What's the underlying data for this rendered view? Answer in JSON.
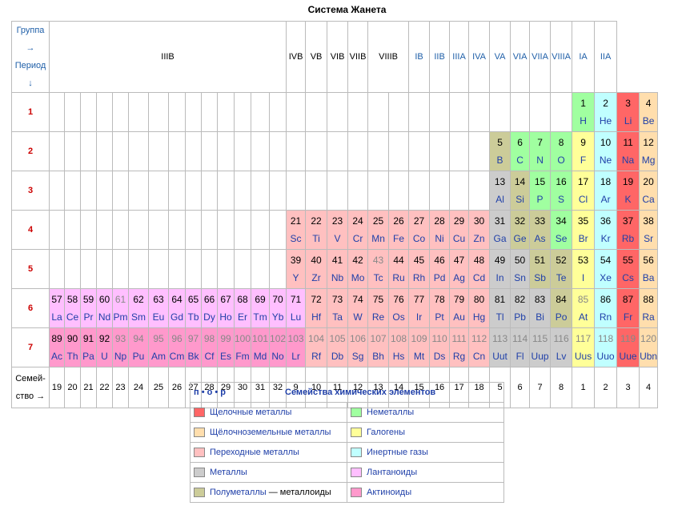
{
  "title": "Система Жанета",
  "corner": {
    "group": "Группа →",
    "period": "Период ↓"
  },
  "group_headers": [
    "IIIB",
    "IVB",
    "VB",
    "VIB",
    "VIIB",
    "VIIIB",
    "IB",
    "IIB",
    "IIIA",
    "IVA",
    "VA",
    "VIA",
    "VIIA",
    "VIIIA",
    "IA",
    "IIA"
  ],
  "periods": [
    "1",
    "2",
    "3",
    "4",
    "5",
    "6",
    "7"
  ],
  "family_label": [
    "Семей-",
    "ство →"
  ],
  "family_numbers": [
    "19",
    "20",
    "21",
    "22",
    "23",
    "24",
    "25",
    "26",
    "27",
    "28",
    "29",
    "30",
    "31",
    "32",
    "9",
    "10",
    "11",
    "12",
    "13",
    "14",
    "15",
    "16",
    "17",
    "18",
    "5",
    "6",
    "7",
    "8",
    "1",
    "2",
    "3",
    "4"
  ],
  "colors": {
    "alkali": "#ff6666",
    "earth": "#ffdead",
    "trans": "#ffc0c0",
    "metal": "#cccccc",
    "semi": "#cccc99",
    "nonmetal": "#a0ffa0",
    "halogen": "#ffff99",
    "noble": "#c0ffff",
    "lanth": "#ffbfff",
    "act": "#ff99cc"
  },
  "elements": [
    [
      [
        28,
        "1",
        "H",
        "nonmetal",
        0
      ],
      [
        29,
        "2",
        "He",
        "noble",
        0
      ],
      [
        30,
        "3",
        "Li",
        "alkali",
        0
      ],
      [
        31,
        "4",
        "Be",
        "earth",
        0
      ]
    ],
    [
      [
        24,
        "5",
        "B",
        "semi",
        0
      ],
      [
        25,
        "6",
        "C",
        "nonmetal",
        0
      ],
      [
        26,
        "7",
        "N",
        "nonmetal",
        0
      ],
      [
        27,
        "8",
        "O",
        "nonmetal",
        0
      ],
      [
        28,
        "9",
        "F",
        "halogen",
        0
      ],
      [
        29,
        "10",
        "Ne",
        "noble",
        0
      ],
      [
        30,
        "11",
        "Na",
        "alkali",
        0
      ],
      [
        31,
        "12",
        "Mg",
        "earth",
        0
      ]
    ],
    [
      [
        24,
        "13",
        "Al",
        "metal",
        0
      ],
      [
        25,
        "14",
        "Si",
        "semi",
        0
      ],
      [
        26,
        "15",
        "P",
        "nonmetal",
        0
      ],
      [
        27,
        "16",
        "S",
        "nonmetal",
        0
      ],
      [
        28,
        "17",
        "Cl",
        "halogen",
        0
      ],
      [
        29,
        "18",
        "Ar",
        "noble",
        0
      ],
      [
        30,
        "19",
        "K",
        "alkali",
        0
      ],
      [
        31,
        "20",
        "Ca",
        "earth",
        0
      ]
    ],
    [
      [
        14,
        "21",
        "Sc",
        "trans",
        0
      ],
      [
        15,
        "22",
        "Ti",
        "trans",
        0
      ],
      [
        16,
        "23",
        "V",
        "trans",
        0
      ],
      [
        17,
        "24",
        "Cr",
        "trans",
        0
      ],
      [
        18,
        "25",
        "Mn",
        "trans",
        0
      ],
      [
        19,
        "26",
        "Fe",
        "trans",
        0
      ],
      [
        20,
        "27",
        "Co",
        "trans",
        0
      ],
      [
        21,
        "28",
        "Ni",
        "trans",
        0
      ],
      [
        22,
        "29",
        "Cu",
        "trans",
        0
      ],
      [
        23,
        "30",
        "Zn",
        "trans",
        0
      ],
      [
        24,
        "31",
        "Ga",
        "metal",
        0
      ],
      [
        25,
        "32",
        "Ge",
        "semi",
        0
      ],
      [
        26,
        "33",
        "As",
        "semi",
        0
      ],
      [
        27,
        "34",
        "Se",
        "nonmetal",
        0
      ],
      [
        28,
        "35",
        "Br",
        "halogen",
        0
      ],
      [
        29,
        "36",
        "Kr",
        "noble",
        0
      ],
      [
        30,
        "37",
        "Rb",
        "alkali",
        0
      ],
      [
        31,
        "38",
        "Sr",
        "earth",
        0
      ]
    ],
    [
      [
        14,
        "39",
        "Y",
        "trans",
        0
      ],
      [
        15,
        "40",
        "Zr",
        "trans",
        0
      ],
      [
        16,
        "41",
        "Nb",
        "trans",
        0
      ],
      [
        17,
        "42",
        "Mo",
        "trans",
        0
      ],
      [
        18,
        "43",
        "Tc",
        "trans",
        1
      ],
      [
        19,
        "44",
        "Ru",
        "trans",
        0
      ],
      [
        20,
        "45",
        "Rh",
        "trans",
        0
      ],
      [
        21,
        "46",
        "Pd",
        "trans",
        0
      ],
      [
        22,
        "47",
        "Ag",
        "trans",
        0
      ],
      [
        23,
        "48",
        "Cd",
        "trans",
        0
      ],
      [
        24,
        "49",
        "In",
        "metal",
        0
      ],
      [
        25,
        "50",
        "Sn",
        "metal",
        0
      ],
      [
        26,
        "51",
        "Sb",
        "semi",
        0
      ],
      [
        27,
        "52",
        "Te",
        "semi",
        0
      ],
      [
        28,
        "53",
        "I",
        "halogen",
        0
      ],
      [
        29,
        "54",
        "Xe",
        "noble",
        0
      ],
      [
        30,
        "55",
        "Cs",
        "alkali",
        0
      ],
      [
        31,
        "56",
        "Ba",
        "earth",
        0
      ]
    ],
    [
      [
        0,
        "57",
        "La",
        "lanth",
        0
      ],
      [
        1,
        "58",
        "Ce",
        "lanth",
        0
      ],
      [
        2,
        "59",
        "Pr",
        "lanth",
        0
      ],
      [
        3,
        "60",
        "Nd",
        "lanth",
        0
      ],
      [
        4,
        "61",
        "Pm",
        "lanth",
        1
      ],
      [
        5,
        "62",
        "Sm",
        "lanth",
        0
      ],
      [
        6,
        "63",
        "Eu",
        "lanth",
        0
      ],
      [
        7,
        "64",
        "Gd",
        "lanth",
        0
      ],
      [
        8,
        "65",
        "Tb",
        "lanth",
        0
      ],
      [
        9,
        "66",
        "Dy",
        "lanth",
        0
      ],
      [
        10,
        "67",
        "Ho",
        "lanth",
        0
      ],
      [
        11,
        "68",
        "Er",
        "lanth",
        0
      ],
      [
        12,
        "69",
        "Tm",
        "lanth",
        0
      ],
      [
        13,
        "70",
        "Yb",
        "lanth",
        0
      ],
      [
        14,
        "71",
        "Lu",
        "lanth",
        0
      ],
      [
        15,
        "72",
        "Hf",
        "trans",
        0
      ],
      [
        16,
        "73",
        "Ta",
        "trans",
        0
      ],
      [
        17,
        "74",
        "W",
        "trans",
        0
      ],
      [
        18,
        "75",
        "Re",
        "trans",
        0
      ],
      [
        19,
        "76",
        "Os",
        "trans",
        0
      ],
      [
        20,
        "77",
        "Ir",
        "trans",
        0
      ],
      [
        21,
        "78",
        "Pt",
        "trans",
        0
      ],
      [
        22,
        "79",
        "Au",
        "trans",
        0
      ],
      [
        23,
        "80",
        "Hg",
        "trans",
        0
      ],
      [
        24,
        "81",
        "Tl",
        "metal",
        0
      ],
      [
        25,
        "82",
        "Pb",
        "metal",
        0
      ],
      [
        26,
        "83",
        "Bi",
        "metal",
        0
      ],
      [
        27,
        "84",
        "Po",
        "semi",
        0
      ],
      [
        28,
        "85",
        "At",
        "halogen",
        1
      ],
      [
        29,
        "86",
        "Rn",
        "noble",
        0
      ],
      [
        30,
        "87",
        "Fr",
        "alkali",
        0
      ],
      [
        31,
        "88",
        "Ra",
        "earth",
        0
      ]
    ],
    [
      [
        0,
        "89",
        "Ac",
        "act",
        0
      ],
      [
        1,
        "90",
        "Th",
        "act",
        0
      ],
      [
        2,
        "91",
        "Pa",
        "act",
        0
      ],
      [
        3,
        "92",
        "U",
        "act",
        0
      ],
      [
        4,
        "93",
        "Np",
        "act",
        1
      ],
      [
        5,
        "94",
        "Pu",
        "act",
        1
      ],
      [
        6,
        "95",
        "Am",
        "act",
        1
      ],
      [
        7,
        "96",
        "Cm",
        "act",
        1
      ],
      [
        8,
        "97",
        "Bk",
        "act",
        1
      ],
      [
        9,
        "98",
        "Cf",
        "act",
        1
      ],
      [
        10,
        "99",
        "Es",
        "act",
        1
      ],
      [
        11,
        "100",
        "Fm",
        "act",
        1
      ],
      [
        12,
        "101",
        "Md",
        "act",
        1
      ],
      [
        13,
        "102",
        "No",
        "act",
        1
      ],
      [
        14,
        "103",
        "Lr",
        "act",
        1
      ],
      [
        15,
        "104",
        "Rf",
        "trans",
        1
      ],
      [
        16,
        "105",
        "Db",
        "trans",
        1
      ],
      [
        17,
        "106",
        "Sg",
        "trans",
        1
      ],
      [
        18,
        "107",
        "Bh",
        "trans",
        1
      ],
      [
        19,
        "108",
        "Hs",
        "trans",
        1
      ],
      [
        20,
        "109",
        "Mt",
        "trans",
        1
      ],
      [
        21,
        "110",
        "Ds",
        "trans",
        1
      ],
      [
        22,
        "111",
        "Rg",
        "trans",
        1
      ],
      [
        23,
        "112",
        "Cn",
        "trans",
        1
      ],
      [
        24,
        "113",
        "Uut",
        "metal",
        1
      ],
      [
        25,
        "114",
        "Fl",
        "metal",
        1
      ],
      [
        26,
        "115",
        "Uup",
        "metal",
        1
      ],
      [
        27,
        "116",
        "Lv",
        "metal",
        1
      ],
      [
        28,
        "117",
        "Uus",
        "halogen",
        1
      ],
      [
        29,
        "118",
        "Uuo",
        "noble",
        1
      ],
      [
        30,
        "119",
        "Uue",
        "alkali",
        1
      ],
      [
        31,
        "120",
        "Ubn",
        "earth",
        1
      ]
    ]
  ],
  "legend": {
    "header_left": "п • о • р",
    "header_right": "Семейства химических элементов",
    "rows": [
      [
        {
          "label": "Щелочные металлы",
          "color": "alkali"
        },
        {
          "label": "Неметаллы",
          "color": "nonmetal"
        }
      ],
      [
        {
          "label": "Щёлочноземельные металлы",
          "color": "earth"
        },
        {
          "label": "Галогены",
          "color": "halogen"
        }
      ],
      [
        {
          "label": "Переходные металлы",
          "color": "trans"
        },
        {
          "label": "Инертные газы",
          "color": "noble"
        }
      ],
      [
        {
          "label": "Металлы",
          "color": "metal"
        },
        {
          "label": "Лантаноиды",
          "color": "lanth"
        }
      ],
      [
        {
          "label": "Полуметаллы",
          "suffix": " — металлоиды",
          "color": "semi"
        },
        {
          "label": "Актиноиды",
          "color": "act"
        }
      ]
    ]
  }
}
